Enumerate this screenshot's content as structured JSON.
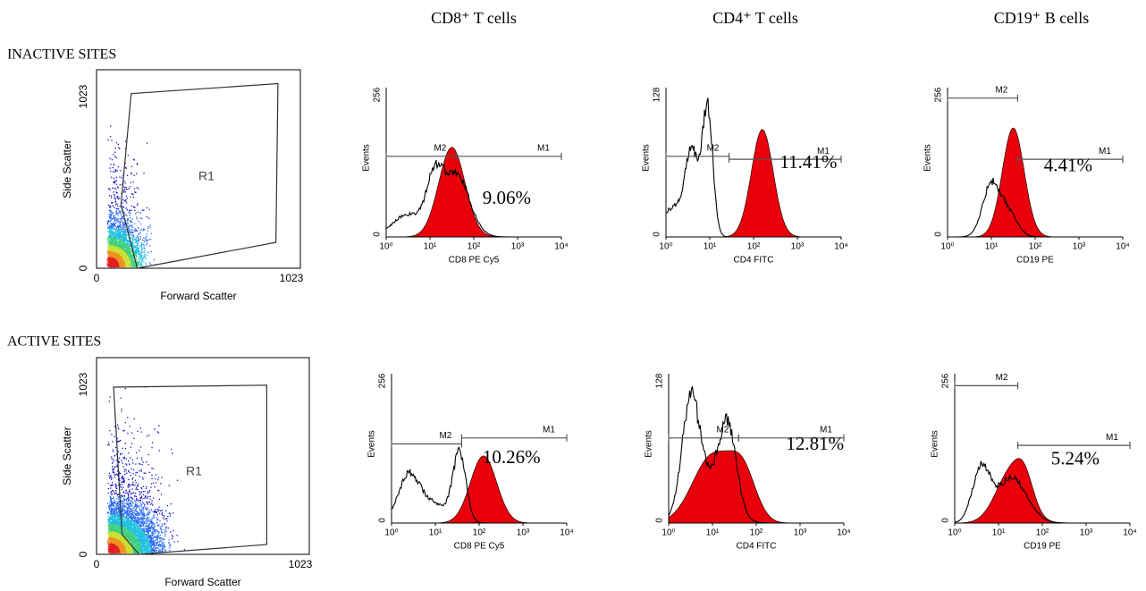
{
  "column_headers": [
    "CD8⁺ T cells",
    "CD4⁺ T cells",
    "CD19⁺ B cells"
  ],
  "rows": [
    {
      "label": "INACTIVE SITES",
      "scatter": {
        "x_label": "Forward Scatter",
        "y_label": "Side Scatter",
        "x_ticks": [
          "0",
          "1023"
        ],
        "y_ticks": [
          "0",
          "1023"
        ],
        "gate": "R1"
      },
      "histograms": [
        {
          "x_label": "CD8 PE Cy5",
          "y_label": "Events",
          "y_ticks": [
            "0",
            "256"
          ],
          "x_ticks": [
            "10⁰",
            "10¹",
            "10²",
            "10³",
            "10⁴"
          ],
          "markers": [
            "M2",
            "M1"
          ],
          "percent": "9.06%"
        },
        {
          "x_label": "CD4 FITC",
          "y_label": "Events",
          "y_ticks": [
            "0",
            "128"
          ],
          "x_ticks": [
            "10⁰",
            "10¹",
            "10²",
            "10³",
            "10⁴"
          ],
          "markers": [
            "M2",
            "M1"
          ],
          "percent": "11.41%"
        },
        {
          "x_label": "CD19 PE",
          "y_label": "Events",
          "y_ticks": [
            "0",
            "256"
          ],
          "x_ticks": [
            "10⁰",
            "10¹",
            "10²",
            "10³",
            "10⁴"
          ],
          "markers": [
            "M2",
            "M1"
          ],
          "percent": "4.41%"
        }
      ]
    },
    {
      "label": "ACTIVE SITES",
      "scatter": {
        "x_label": "Forward Scatter",
        "y_label": "Side Scatter",
        "x_ticks": [
          "0",
          "1023"
        ],
        "y_ticks": [
          "0",
          "1023"
        ],
        "gate": "R1"
      },
      "histograms": [
        {
          "x_label": "CD8 PE Cy5",
          "y_label": "Events",
          "y_ticks": [
            "0",
            "256"
          ],
          "x_ticks": [
            "10⁰",
            "10¹",
            "10²",
            "10³",
            "10⁴"
          ],
          "markers": [
            "M2",
            "M1"
          ],
          "percent": "10.26%"
        },
        {
          "x_label": "CD4 FITC",
          "y_label": "Events",
          "y_ticks": [
            "0",
            "128"
          ],
          "x_ticks": [
            "10⁰",
            "10¹",
            "10²",
            "10³",
            "10⁴"
          ],
          "markers": [
            "M2",
            "M1"
          ],
          "percent": "12.81%"
        },
        {
          "x_label": "CD19 PE",
          "y_label": "Events",
          "y_ticks": [
            "0",
            "256"
          ],
          "x_ticks": [
            "10⁰",
            "10¹",
            "10²",
            "10³",
            "10⁴"
          ],
          "markers": [
            "M2",
            "M1"
          ],
          "percent": "5.24%"
        }
      ]
    }
  ]
}
